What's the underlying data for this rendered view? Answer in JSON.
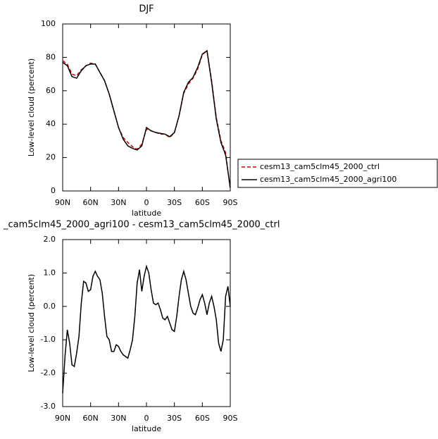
{
  "chart_data": [
    {
      "type": "line",
      "title": "DJF",
      "xlabel": "latitude",
      "ylabel": "Low-level cloud (percent)",
      "x": [
        90,
        85,
        80,
        75,
        70,
        65,
        60,
        55,
        50,
        45,
        40,
        35,
        30,
        25,
        20,
        15,
        10,
        5,
        0,
        -5,
        -10,
        -15,
        -20,
        -25,
        -30,
        -35,
        -40,
        -45,
        -50,
        -55,
        -60,
        -65,
        -70,
        -75,
        -80,
        -85,
        -90
      ],
      "series": [
        {
          "name": "cesm13_cam5clm45_2000_ctrl",
          "color": "#cc0000",
          "linestyle": "dashed",
          "values": [
            78,
            76,
            70,
            69,
            72.5,
            75,
            76.5,
            76,
            71,
            66,
            58,
            48,
            38,
            32,
            29,
            26.5,
            25,
            28,
            37,
            36,
            35,
            34,
            34,
            32,
            35,
            45,
            58.5,
            64,
            67.5,
            73,
            81.5,
            84,
            66,
            44,
            30,
            23,
            1
          ]
        },
        {
          "name": "cesm13_cam5clm45_2000_agri100",
          "color": "#000000",
          "linestyle": "solid",
          "values": [
            77,
            75,
            68.5,
            67.5,
            72,
            75,
            76,
            76,
            71,
            66,
            58,
            48,
            38,
            31,
            27,
            25.5,
            24.5,
            27,
            38,
            36,
            35,
            34.5,
            34,
            32.5,
            35,
            45,
            59,
            65,
            68,
            74,
            82,
            84,
            65,
            43,
            29,
            21.5,
            2
          ]
        }
      ],
      "xlim": [
        90,
        -90
      ],
      "xticks": [
        {
          "value": 90,
          "label": "90N"
        },
        {
          "value": 60,
          "label": "60N"
        },
        {
          "value": 30,
          "label": "30N"
        },
        0,
        {
          "value": -30,
          "label": "30S"
        },
        {
          "value": -60,
          "label": "60S"
        },
        {
          "value": -90,
          "label": "90S"
        }
      ],
      "ylim": [
        0,
        100
      ],
      "yticks": [
        0,
        20,
        40,
        60,
        80,
        100
      ],
      "grid": false,
      "legend": "right"
    },
    {
      "type": "line",
      "title": "_cam5clm45_2000_agri100 - cesm13_cam5clm45_2000_ctrl",
      "xlabel": "latitude",
      "ylabel": "Low-level cloud (percent)",
      "x": [
        90,
        87.5,
        85,
        82.5,
        80,
        77.5,
        75,
        72.5,
        70,
        67.5,
        65,
        62.5,
        60,
        57.5,
        55,
        52.5,
        50,
        47.5,
        45,
        42.5,
        40,
        37.5,
        35,
        32.5,
        30,
        27.5,
        25,
        22.5,
        20,
        17.5,
        15,
        12.5,
        10,
        7.5,
        5,
        2.5,
        0,
        -2.5,
        -5,
        -7.5,
        -10,
        -12.5,
        -15,
        -17.5,
        -20,
        -22.5,
        -25,
        -27.5,
        -30,
        -32.5,
        -35,
        -37.5,
        -40,
        -42.5,
        -45,
        -47.5,
        -50,
        -52.5,
        -55,
        -57.5,
        -60,
        -62.5,
        -65,
        -67.5,
        -70,
        -72.5,
        -75,
        -77.5,
        -80,
        -82.5,
        -85,
        -87.5,
        -90
      ],
      "series": [
        {
          "color": "#000000",
          "linestyle": "solid",
          "values": [
            -2.6,
            -1.5,
            -0.7,
            -1.1,
            -1.75,
            -1.8,
            -1.4,
            -0.9,
            0.1,
            0.75,
            0.7,
            0.45,
            0.5,
            0.9,
            1.05,
            0.9,
            0.8,
            0.4,
            -0.3,
            -0.9,
            -1.0,
            -1.35,
            -1.35,
            -1.15,
            -1.2,
            -1.35,
            -1.45,
            -1.5,
            -1.55,
            -1.3,
            -1.0,
            -0.3,
            0.7,
            1.1,
            0.45,
            0.9,
            1.2,
            1.0,
            0.5,
            0.1,
            0.05,
            0.1,
            -0.1,
            -0.35,
            -0.4,
            -0.3,
            -0.5,
            -0.7,
            -0.75,
            -0.3,
            0.3,
            0.8,
            1.05,
            0.8,
            0.4,
            0.0,
            -0.2,
            -0.25,
            -0.05,
            0.2,
            0.35,
            0.1,
            -0.25,
            0.1,
            0.3,
            0.0,
            -0.4,
            -1.1,
            -1.35,
            -1.0,
            0.3,
            0.6,
            0.0
          ]
        }
      ],
      "xlim": [
        90,
        -90
      ],
      "xticks": [
        {
          "value": 90,
          "label": "90N"
        },
        {
          "value": 60,
          "label": "60N"
        },
        {
          "value": 30,
          "label": "30N"
        },
        0,
        {
          "value": -30,
          "label": "30S"
        },
        {
          "value": -60,
          "label": "60S"
        },
        {
          "value": -90,
          "label": "90S"
        }
      ],
      "ylim": [
        -3,
        2
      ],
      "yticks": [
        {
          "value": -3,
          "label": "-3.0"
        },
        {
          "value": -2,
          "label": "-2.0"
        },
        {
          "value": -1,
          "label": "-1.0"
        },
        {
          "value": 0,
          "label": "0.0"
        },
        {
          "value": 1,
          "label": "1.0"
        },
        {
          "value": 2,
          "label": "2.0"
        }
      ],
      "grid": false
    }
  ]
}
